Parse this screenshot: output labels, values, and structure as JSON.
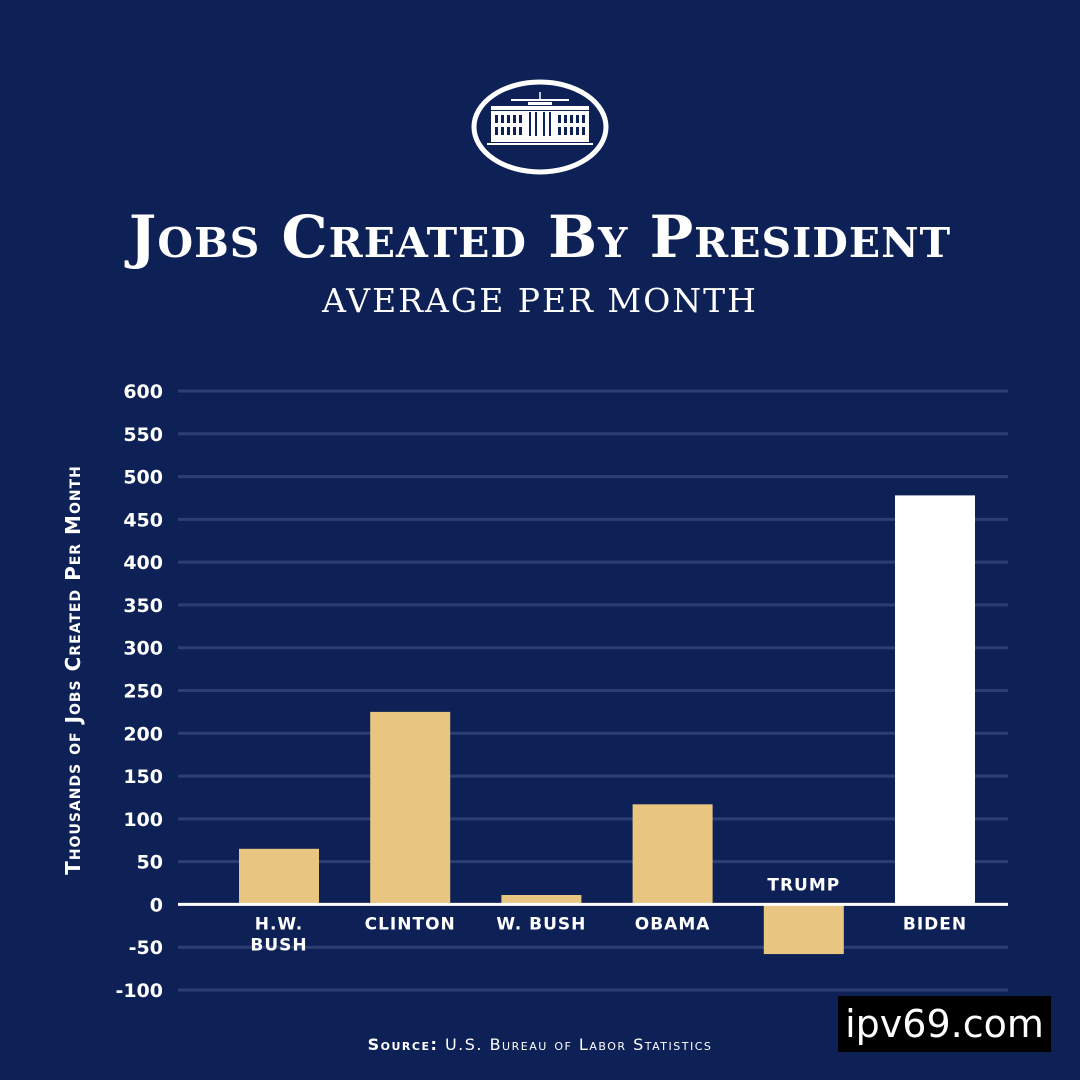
{
  "title": "Jobs Created By President",
  "subtitle": "AVERAGE PER MONTH",
  "source": {
    "label": "Source:",
    "text": "U.S. Bureau of Labor Statistics"
  },
  "watermark": "ipv69.com",
  "logo_icon": "white-house-icon",
  "colors": {
    "background": "#0e2157",
    "bar": "#e8c682",
    "highlight": "#ffffff",
    "grid": "#2c3f72",
    "text": "#ffffff"
  },
  "chart_data": {
    "type": "bar",
    "ylabel": "Thousands of Jobs Created Per Month",
    "ylim": [
      -100,
      600
    ],
    "yticks": [
      600,
      550,
      500,
      450,
      400,
      350,
      300,
      250,
      200,
      150,
      100,
      50,
      0,
      -50,
      -100
    ],
    "grid": true,
    "categories": [
      [
        "H.W.",
        "BUSH"
      ],
      [
        "CLINTON"
      ],
      [
        "W. BUSH"
      ],
      [
        "OBAMA"
      ],
      [
        "TRUMP"
      ],
      [
        "BIDEN"
      ]
    ],
    "values": [
      65,
      225,
      11,
      117,
      -58,
      478
    ],
    "highlight": [
      false,
      false,
      false,
      false,
      false,
      true
    ]
  }
}
